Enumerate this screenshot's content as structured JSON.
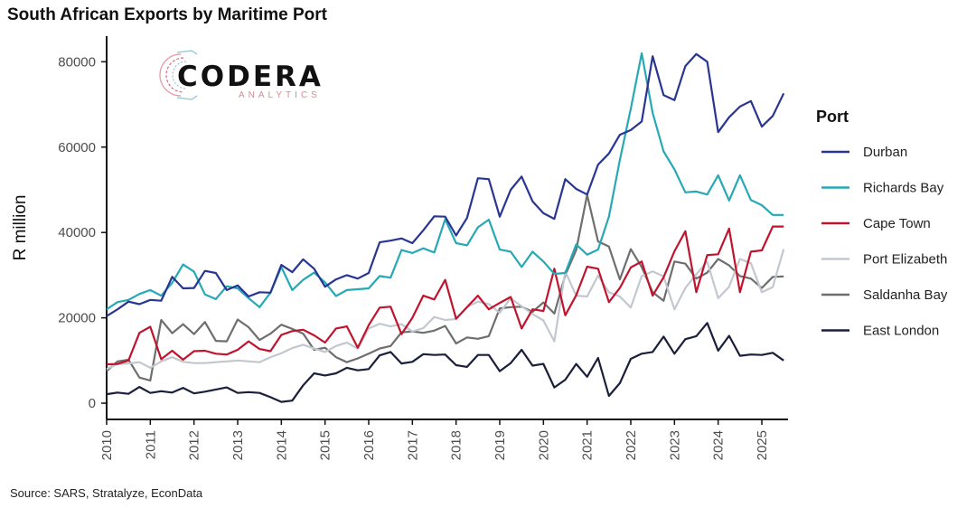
{
  "title": "South African Exports by Maritime Port",
  "source": "Source: SARS, Stratalyze, EconData",
  "logo": {
    "name": "CODERA",
    "sub": "ANALYTICS"
  },
  "chart_data": {
    "type": "line",
    "title": "South African Exports by Maritime Port",
    "xlabel": "",
    "ylabel": "R million",
    "xlim": [
      2010,
      2025.6
    ],
    "ylim": [
      -3800,
      86000
    ],
    "x_start": 2010,
    "x_step": 0.25,
    "x_ticks": [
      2010,
      2011,
      2012,
      2013,
      2014,
      2015,
      2016,
      2017,
      2018,
      2019,
      2020,
      2021,
      2022,
      2023,
      2024,
      2025
    ],
    "x_tick_labels": [
      "2010",
      "2011",
      "2012",
      "2013",
      "2014",
      "2015",
      "2016",
      "2017",
      "2018",
      "2019",
      "2020",
      "2021",
      "2022",
      "2023",
      "2024",
      "2025"
    ],
    "y_ticks": [
      0,
      20000,
      40000,
      60000,
      80000
    ],
    "y_tick_labels": [
      "0",
      "20000",
      "40000",
      "60000",
      "80000"
    ],
    "grid": false,
    "legend": {
      "title": "Port",
      "position": "right"
    },
    "series": [
      {
        "name": "Durban",
        "color": "#283593",
        "values": [
          20400,
          22000,
          23800,
          23200,
          24200,
          24000,
          29600,
          26900,
          27000,
          31000,
          30500,
          26500,
          27600,
          25000,
          26000,
          25900,
          32400,
          30700,
          33700,
          31500,
          27300,
          29000,
          30000,
          29200,
          30500,
          37700,
          38100,
          38600,
          37500,
          40500,
          43800,
          43700,
          39300,
          43400,
          52700,
          52500,
          43700,
          50000,
          53100,
          47300,
          44500,
          43200,
          52500,
          50200,
          48900,
          55900,
          58500,
          62900,
          64000,
          66000,
          81300,
          72200,
          71000,
          79000,
          81800,
          80000,
          63500,
          67000,
          69500,
          70800,
          64800,
          67300,
          72600
        ]
      },
      {
        "name": "Richards Bay",
        "color": "#26a9b5",
        "values": [
          22000,
          23700,
          24200,
          25600,
          26500,
          25200,
          28200,
          32500,
          30800,
          25500,
          24400,
          27400,
          26900,
          24600,
          22500,
          25900,
          31900,
          26500,
          28900,
          30600,
          28300,
          25100,
          26500,
          26700,
          26900,
          29800,
          29400,
          35900,
          35200,
          36300,
          35300,
          43100,
          37500,
          37000,
          41200,
          43000,
          36000,
          35500,
          31900,
          35500,
          33200,
          30300,
          30500,
          37200,
          34800,
          36000,
          43700,
          57000,
          69000,
          82000,
          68000,
          59000,
          54800,
          49400,
          49600,
          48900,
          53400,
          47500,
          53400,
          47600,
          46400,
          44100,
          44100
        ]
      },
      {
        "name": "Cape Town",
        "color": "#c0142e",
        "values": [
          9100,
          9200,
          10000,
          16500,
          17900,
          10300,
          12300,
          10200,
          12200,
          12300,
          11600,
          11400,
          12500,
          14500,
          12700,
          12200,
          16000,
          16900,
          17200,
          15900,
          14200,
          17500,
          18000,
          13000,
          18300,
          22400,
          22600,
          16200,
          20000,
          25200,
          24300,
          28900,
          19800,
          22500,
          25200,
          22000,
          23500,
          24900,
          17500,
          22000,
          21600,
          31500,
          20600,
          25300,
          32000,
          31500,
          23700,
          27000,
          31800,
          33200,
          25200,
          29500,
          35600,
          40300,
          26000,
          34700,
          34900,
          40900,
          26000,
          35500,
          35800,
          41400,
          41400
        ]
      },
      {
        "name": "Port Elizabeth",
        "color": "#c3c7cf",
        "values": [
          8000,
          9200,
          9300,
          9600,
          8300,
          9800,
          10800,
          9700,
          9400,
          9400,
          9600,
          9800,
          10000,
          9800,
          9600,
          10800,
          11700,
          12900,
          13700,
          12800,
          12000,
          13400,
          14200,
          12800,
          17500,
          18600,
          18000,
          18500,
          16800,
          17600,
          20200,
          19500,
          19700,
          22500,
          23800,
          23200,
          21200,
          24600,
          22700,
          20900,
          19400,
          14500,
          30900,
          25200,
          25000,
          29900,
          26000,
          25000,
          22400,
          29800,
          30900,
          29700,
          22000,
          27000,
          30200,
          33200,
          24600,
          27300,
          33800,
          32800,
          26000,
          27200,
          36100
        ]
      },
      {
        "name": "Saldanha Bay",
        "color": "#6e6e6e",
        "values": [
          7500,
          9800,
          10200,
          6000,
          5300,
          19500,
          16400,
          18500,
          16200,
          19000,
          14600,
          14500,
          19600,
          17800,
          14800,
          16300,
          18400,
          17400,
          16300,
          12500,
          13000,
          10800,
          9600,
          10500,
          11600,
          12800,
          13400,
          16600,
          16800,
          16500,
          17000,
          18100,
          14000,
          15400,
          15100,
          15700,
          22200,
          22500,
          22600,
          21400,
          23600,
          21000,
          30000,
          35900,
          48800,
          37900,
          36700,
          29000,
          36100,
          31900,
          26000,
          24000,
          33200,
          32700,
          29200,
          30600,
          33800,
          32300,
          29800,
          29200,
          27000,
          29600,
          29700
        ]
      },
      {
        "name": "East London",
        "color": "#1a1f3b",
        "values": [
          2100,
          2500,
          2200,
          3800,
          2400,
          2800,
          2500,
          3600,
          2300,
          2700,
          3200,
          3700,
          2400,
          2600,
          2400,
          1400,
          300,
          600,
          4200,
          7000,
          6500,
          7000,
          8300,
          7700,
          8000,
          11200,
          12000,
          9300,
          9700,
          11500,
          11300,
          11400,
          8900,
          8500,
          11300,
          11300,
          7500,
          9400,
          12500,
          8800,
          9200,
          3700,
          5500,
          9200,
          6200,
          10600,
          1700,
          4700,
          10400,
          11600,
          12000,
          15600,
          11600,
          15000,
          15700,
          18800,
          12300,
          15800,
          11100,
          11400,
          11300,
          11800,
          10000
        ]
      }
    ]
  }
}
